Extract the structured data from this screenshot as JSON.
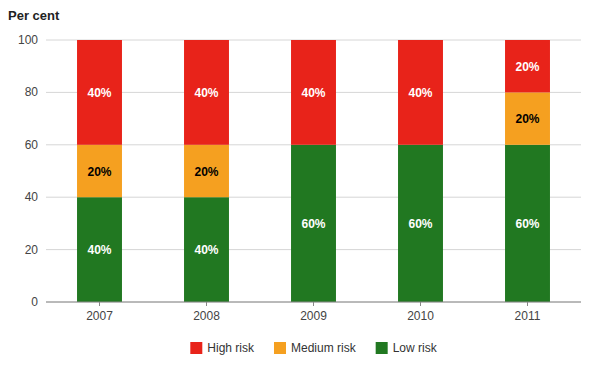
{
  "chart_data": {
    "type": "bar",
    "stacked": true,
    "ylabel": "Per cent",
    "categories": [
      "2007",
      "2008",
      "2009",
      "2010",
      "2011"
    ],
    "series": [
      {
        "name": "Low risk",
        "color": "#217821",
        "values": [
          40,
          40,
          60,
          60,
          60
        ],
        "value_labels": [
          "40%",
          "40%",
          "60%",
          "60%",
          "60%"
        ]
      },
      {
        "name": "Medium risk",
        "color": "#f5a020",
        "values": [
          20,
          20,
          0,
          0,
          20
        ],
        "value_labels": [
          "20%",
          "20%",
          null,
          null,
          "20%"
        ]
      },
      {
        "name": "High risk",
        "color": "#e8231a",
        "values": [
          40,
          40,
          40,
          40,
          20
        ],
        "value_labels": [
          "40%",
          "40%",
          "40%",
          "40%",
          "20%"
        ]
      }
    ],
    "ylim": [
      0,
      100
    ],
    "yticks": [
      0,
      20,
      40,
      60,
      80,
      100
    ],
    "grid": true,
    "legend": "bottom",
    "data_labels": true
  }
}
